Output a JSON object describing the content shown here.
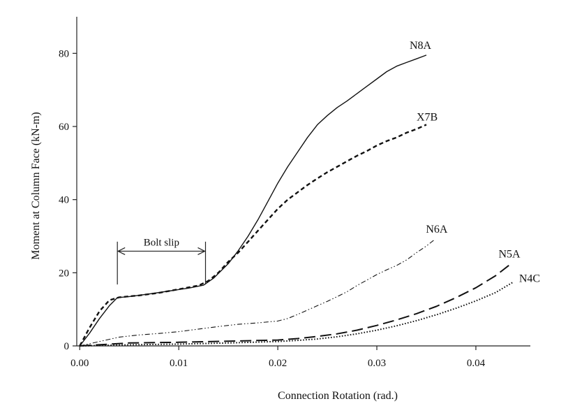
{
  "chart_data": {
    "type": "line",
    "title": "",
    "xlabel": "Connection Rotation (rad.)",
    "ylabel": "Moment at Column Face (kN-m)",
    "xlim": [
      -0.0003,
      0.0455
    ],
    "ylim": [
      0,
      90
    ],
    "xticks": [
      0.0,
      0.01,
      0.02,
      0.03,
      0.04
    ],
    "xtick_labels": [
      "0.00",
      "0.01",
      "0.02",
      "0.03",
      "0.04"
    ],
    "yticks": [
      0,
      20,
      40,
      60,
      80
    ],
    "ytick_labels": [
      "0",
      "20",
      "40",
      "60",
      "80"
    ],
    "grid": false,
    "series": [
      {
        "name": "N8A",
        "style": "solid",
        "x": [
          0.0,
          0.001,
          0.002,
          0.003,
          0.0038,
          0.005,
          0.007,
          0.009,
          0.011,
          0.0125,
          0.0135,
          0.015,
          0.016,
          0.017,
          0.018,
          0.019,
          0.02,
          0.021,
          0.022,
          0.023,
          0.024,
          0.025,
          0.026,
          0.027,
          0.028,
          0.029,
          0.03,
          0.031,
          0.032,
          0.033,
          0.034,
          0.035
        ],
        "y": [
          0,
          3.5,
          7.5,
          11,
          13.2,
          13.5,
          14.2,
          15.0,
          15.8,
          16.6,
          18.5,
          22.5,
          26,
          30,
          34.5,
          39.5,
          44.5,
          49,
          53,
          57,
          60.5,
          63,
          65.2,
          67,
          69,
          71,
          73,
          75,
          76.5,
          77.5,
          78.5,
          79.5
        ]
      },
      {
        "name": "X7B",
        "style": "dashed",
        "x": [
          0.0,
          0.001,
          0.002,
          0.003,
          0.004,
          0.006,
          0.008,
          0.01,
          0.012,
          0.013,
          0.014,
          0.015,
          0.016,
          0.017,
          0.018,
          0.019,
          0.02,
          0.021,
          0.022,
          0.023,
          0.024,
          0.025,
          0.026,
          0.027,
          0.028,
          0.029,
          0.03,
          0.031,
          0.032,
          0.033,
          0.034,
          0.035
        ],
        "y": [
          0,
          5,
          9.5,
          12.5,
          13.3,
          13.8,
          14.5,
          15.5,
          16.5,
          17.8,
          20,
          23,
          25.5,
          28.5,
          31.5,
          34.5,
          37.5,
          40,
          42,
          44,
          45.8,
          47.5,
          49,
          50.5,
          52,
          53.3,
          54.8,
          56,
          57,
          58.3,
          59.3,
          60.5
        ]
      },
      {
        "name": "N6A",
        "style": "dash-dot-dot",
        "x": [
          0.0,
          0.002,
          0.004,
          0.006,
          0.008,
          0.01,
          0.012,
          0.014,
          0.016,
          0.018,
          0.02,
          0.021,
          0.022,
          0.023,
          0.024,
          0.025,
          0.026,
          0.027,
          0.028,
          0.029,
          0.03,
          0.031,
          0.032,
          0.033,
          0.034,
          0.035,
          0.0358
        ],
        "y": [
          0,
          1.2,
          2.4,
          3.0,
          3.4,
          3.9,
          4.6,
          5.3,
          5.9,
          6.3,
          6.8,
          7.5,
          8.6,
          9.8,
          11.0,
          12.2,
          13.5,
          14.8,
          16.5,
          18.0,
          19.5,
          20.8,
          22.0,
          23.5,
          25.5,
          27.3,
          29
        ]
      },
      {
        "name": "N5A",
        "style": "long-dashed",
        "x": [
          0.0,
          0.005,
          0.01,
          0.015,
          0.02,
          0.022,
          0.024,
          0.026,
          0.028,
          0.03,
          0.032,
          0.034,
          0.036,
          0.038,
          0.04,
          0.042,
          0.0437
        ],
        "y": [
          0,
          0.8,
          1.0,
          1.3,
          1.6,
          2.0,
          2.6,
          3.3,
          4.3,
          5.6,
          7.1,
          8.8,
          10.8,
          13.2,
          15.9,
          19.2,
          22.8
        ]
      },
      {
        "name": "N4C",
        "style": "dotted",
        "x": [
          0.0,
          0.005,
          0.01,
          0.015,
          0.02,
          0.022,
          0.024,
          0.026,
          0.028,
          0.03,
          0.032,
          0.034,
          0.036,
          0.038,
          0.04,
          0.042,
          0.0438
        ],
        "y": [
          0,
          0.3,
          0.5,
          0.8,
          1.2,
          1.5,
          1.9,
          2.5,
          3.3,
          4.3,
          5.5,
          6.9,
          8.5,
          10.3,
          12.3,
          14.6,
          17.5
        ]
      }
    ],
    "annotations": [
      {
        "text": "Bolt slip",
        "x_start": 0.0038,
        "x_end": 0.0127,
        "y_start": 16.8,
        "y_end": 28.5,
        "y_arrow": 25.9
      }
    ]
  }
}
